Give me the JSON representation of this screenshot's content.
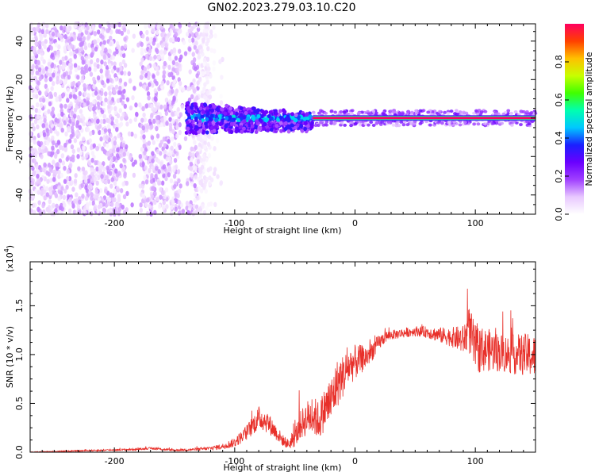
{
  "figure": {
    "title": "GN02.2023.279.03.10.C20"
  },
  "chart_data": [
    {
      "type": "heatmap",
      "title": "GN02.2023.279.03.10.C20",
      "xlabel": "Height of straight line (km)",
      "ylabel": "Frequency (Hz)",
      "xlim": [
        -270,
        150
      ],
      "ylim": [
        -50,
        49
      ],
      "xticks": [
        -200,
        -100,
        0,
        100
      ],
      "yticks": [
        -40,
        -20,
        0,
        20,
        40
      ],
      "colorbar": {
        "label": "Normalized spectral amplitude",
        "range": [
          0,
          1
        ],
        "ticks": [
          0.0,
          0.2,
          0.4,
          0.6,
          0.8
        ],
        "colormap": [
          "#ffffff",
          "#e8c8ff",
          "#a040ff",
          "#6a00ff",
          "#1a20ff",
          "#00c8ff",
          "#00ffb0",
          "#40ff00",
          "#c8ff00",
          "#ffc000",
          "#ff4000",
          "#ff0060"
        ]
      },
      "features": [
        {
          "description": "broadband noise",
          "x_range": [
            -270,
            -120
          ],
          "freq_range": [
            -50,
            49
          ],
          "amplitude": [
            0.02,
            0.15
          ]
        },
        {
          "description": "frequency line",
          "x_range": [
            -140,
            -35
          ],
          "freq_center": 0,
          "freq_spread": [
            8,
            3
          ],
          "amplitude": [
            0.15,
            0.35
          ]
        },
        {
          "description": "strong carrier line",
          "x_range": [
            -35,
            150
          ],
          "frequency": 0,
          "amplitude": 1.0
        }
      ]
    },
    {
      "type": "line",
      "xlabel": "Height of straight line (km)",
      "ylabel": "SNR (10 * v/v)",
      "ylabel_multiplier": "(x10^4)",
      "xlim": [
        -270,
        150
      ],
      "ylim": [
        0,
        1.95
      ],
      "xticks": [
        -200,
        -100,
        0,
        100
      ],
      "yticks": [
        0.0,
        0.5,
        1.0,
        1.5
      ],
      "series": [
        {
          "color": "#e8302a",
          "x": [
            -270,
            -240,
            -210,
            -180,
            -170,
            -150,
            -130,
            -120,
            -110,
            -100,
            -90,
            -80,
            -75,
            -70,
            -60,
            -55,
            -50,
            -45,
            -40,
            -35,
            -30,
            -25,
            -20,
            -15,
            -10,
            -5,
            0,
            5,
            10,
            15,
            20,
            25,
            30,
            40,
            50,
            60,
            70,
            80,
            90,
            95,
            100,
            110,
            120,
            130,
            140,
            150
          ],
          "values": [
            0.0,
            0.01,
            0.02,
            0.03,
            0.04,
            0.02,
            0.03,
            0.04,
            0.06,
            0.1,
            0.2,
            0.35,
            0.33,
            0.27,
            0.12,
            0.08,
            0.15,
            0.28,
            0.35,
            0.38,
            0.32,
            0.45,
            0.52,
            0.7,
            0.78,
            0.88,
            0.92,
            0.95,
            0.98,
            1.05,
            1.12,
            1.18,
            1.2,
            1.22,
            1.24,
            1.23,
            1.2,
            1.18,
            1.15,
            1.25,
            1.05,
            1.05,
            1.02,
            1.0,
            1.0,
            0.98
          ],
          "noise": [
            0.005,
            0.006,
            0.008,
            0.01,
            0.01,
            0.01,
            0.015,
            0.02,
            0.03,
            0.05,
            0.08,
            0.12,
            0.12,
            0.1,
            0.06,
            0.05,
            0.1,
            0.15,
            0.18,
            0.2,
            0.2,
            0.22,
            0.25,
            0.25,
            0.22,
            0.2,
            0.18,
            0.15,
            0.12,
            0.1,
            0.08,
            0.06,
            0.05,
            0.05,
            0.05,
            0.06,
            0.08,
            0.1,
            0.15,
            0.25,
            0.25,
            0.22,
            0.2,
            0.2,
            0.22,
            0.22
          ]
        }
      ]
    }
  ]
}
